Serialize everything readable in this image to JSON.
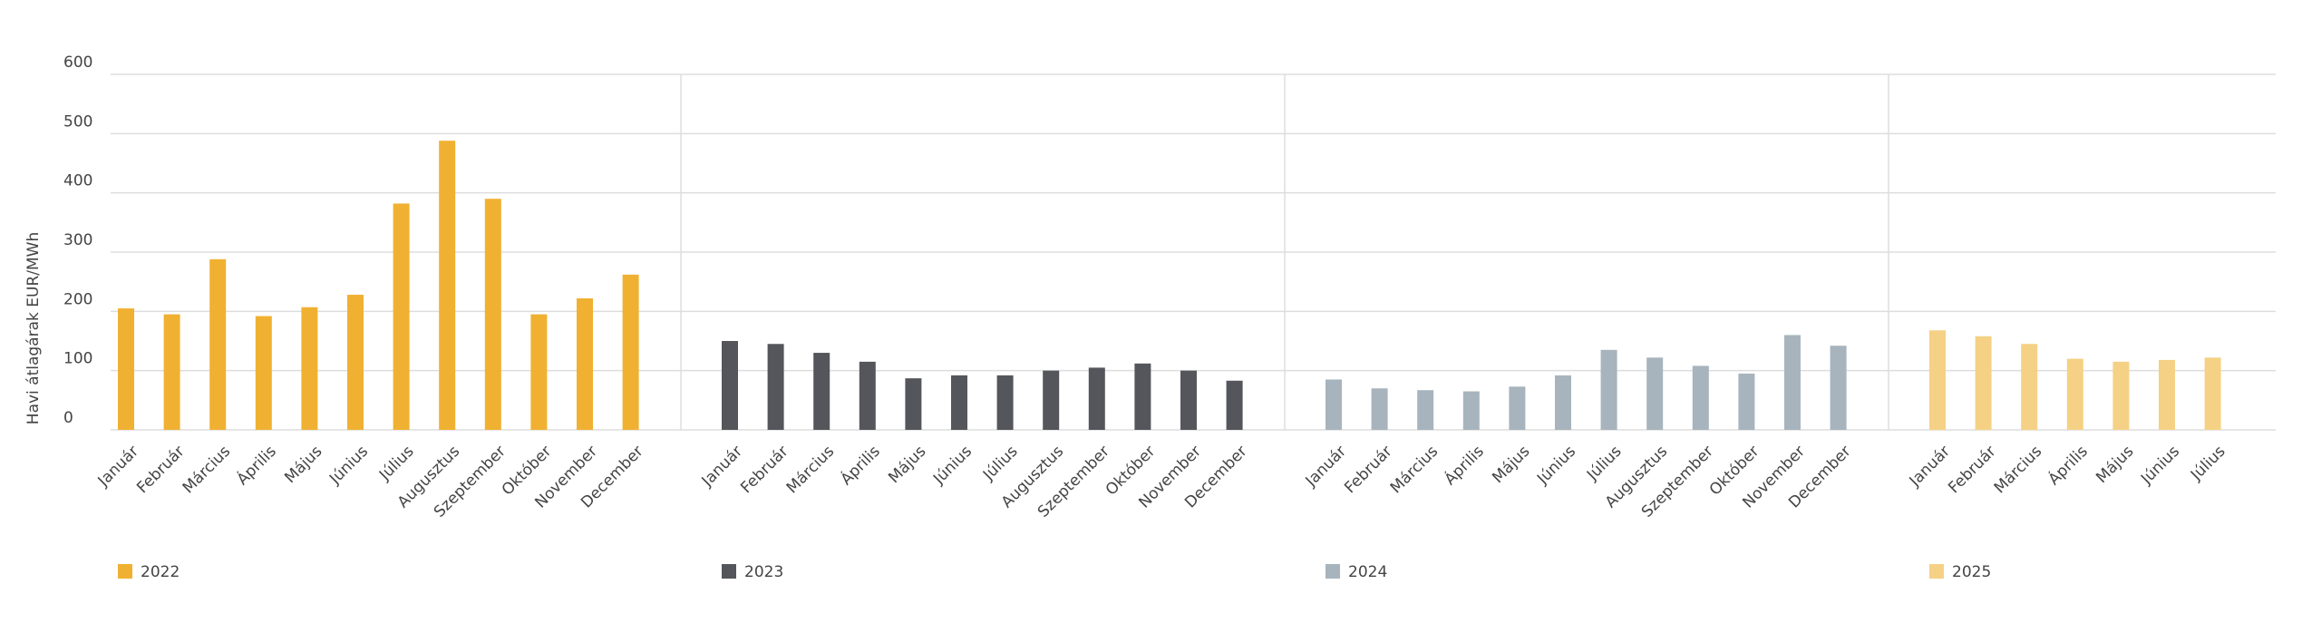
{
  "chart_data": {
    "type": "bar",
    "ylabel": "Havi átlagárak EUR/MWh",
    "ylim": [
      0,
      600
    ],
    "yticks": [
      0,
      100,
      200,
      300,
      400,
      500,
      600
    ],
    "grid": true,
    "series": [
      {
        "name": "2022",
        "color": "#f0b132",
        "categories": [
          "Január",
          "Február",
          "Március",
          "Április",
          "Május",
          "Június",
          "Július",
          "Augusztus",
          "Szeptember",
          "Október",
          "November",
          "December"
        ],
        "values": [
          205,
          195,
          288,
          192,
          207,
          228,
          382,
          488,
          390,
          195,
          222,
          262
        ]
      },
      {
        "name": "2023",
        "color": "#54565b",
        "categories": [
          "Január",
          "Február",
          "Március",
          "Április",
          "Május",
          "Június",
          "Július",
          "Augusztus",
          "Szeptember",
          "Október",
          "November",
          "December"
        ],
        "values": [
          150,
          145,
          130,
          115,
          87,
          92,
          92,
          100,
          105,
          112,
          100,
          83
        ]
      },
      {
        "name": "2024",
        "color": "#a7b4bd",
        "categories": [
          "Január",
          "Február",
          "Március",
          "Április",
          "Május",
          "Június",
          "Július",
          "Augusztus",
          "Szeptember",
          "Október",
          "November",
          "December"
        ],
        "values": [
          85,
          70,
          67,
          65,
          73,
          92,
          135,
          122,
          108,
          95,
          160,
          142
        ]
      },
      {
        "name": "2025",
        "color": "#f5d185",
        "categories": [
          "Január",
          "Február",
          "Március",
          "Április",
          "Május",
          "Június",
          "Július"
        ],
        "values": [
          168,
          158,
          145,
          120,
          115,
          118,
          122
        ]
      }
    ]
  }
}
